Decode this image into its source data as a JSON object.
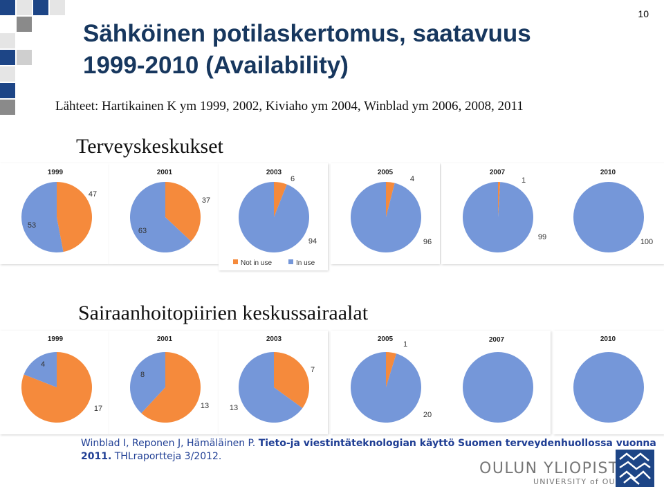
{
  "slide": {
    "number": "10",
    "title_line1": "Sähköinen potilaskertomus, saatavuus",
    "title_line2": "1999-2010 (Availability)",
    "sources": "Lähteet: Hartikainen K ym 1999, 2002,  Kiviaho ym 2004, Winblad ym 2006, 2008, 2011",
    "section1_title": "Terveyskeskukset",
    "section2_title": "Sairaanhoitopiirien keskussairaalat"
  },
  "legend": {
    "not_in_use": "Not in use",
    "in_use": "In use"
  },
  "colors": {
    "not_in_use": "#f58a3c",
    "in_use": "#7597d9",
    "title": "#17375e",
    "footer": "#1f3e94"
  },
  "footer": {
    "part1": "Winblad I, Reponen J, Hämäläinen P. ",
    "part2_bold": "Tieto-ja viestintäteknologian käyttö Suomen terveydenhuollossa vuonna 2011.",
    "part3": " THLraportteja 3/2012."
  },
  "logo": {
    "main": "OULUN YLIOPISTO",
    "sub": "UNIVERSITY of OULU"
  },
  "chart_data": [
    {
      "type": "pie",
      "title": "Terveyskeskukset",
      "legend": [
        "Not in use",
        "In use"
      ],
      "series": [
        {
          "name": "1999",
          "labels": [
            "Not in use",
            "In use"
          ],
          "values": [
            47,
            53
          ]
        },
        {
          "name": "2001",
          "labels": [
            "Not in use",
            "In use"
          ],
          "values": [
            37,
            63
          ]
        },
        {
          "name": "2003",
          "labels": [
            "Not in use",
            "In use"
          ],
          "values": [
            6,
            94
          ]
        },
        {
          "name": "2005",
          "labels": [
            "Not in use",
            "In use"
          ],
          "values": [
            4,
            96
          ]
        },
        {
          "name": "2007",
          "labels": [
            "Not in use",
            "In use"
          ],
          "values": [
            1,
            99
          ]
        },
        {
          "name": "2010",
          "labels": [
            "Not in use",
            "In use"
          ],
          "values": [
            0,
            100
          ]
        }
      ]
    },
    {
      "type": "pie",
      "title": "Sairaanhoitopiirien keskussairaalat",
      "series": [
        {
          "name": "1999",
          "labels": [
            "Not in use",
            "In use"
          ],
          "values": [
            17,
            4
          ]
        },
        {
          "name": "2001",
          "labels": [
            "Not in use",
            "In use"
          ],
          "values": [
            13,
            8
          ]
        },
        {
          "name": "2003",
          "labels": [
            "Not in use",
            "In use"
          ],
          "values": [
            7,
            13
          ]
        },
        {
          "name": "2005",
          "labels": [
            "Not in use",
            "In use"
          ],
          "values": [
            1,
            20
          ]
        },
        {
          "name": "2007",
          "labels": [
            "Not in use",
            "In use"
          ],
          "values": [
            0,
            100
          ]
        },
        {
          "name": "2010",
          "labels": [
            "Not in use",
            "In use"
          ],
          "values": [
            0,
            100
          ]
        }
      ]
    }
  ]
}
